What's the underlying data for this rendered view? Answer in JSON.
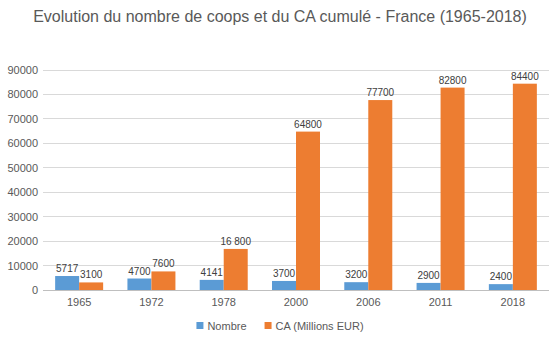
{
  "chart_data": {
    "type": "bar",
    "title": "Evolution du nombre de coops et du CA cumulé - France (1965-2018)",
    "categories": [
      "1965",
      "1972",
      "1978",
      "2000",
      "2006",
      "2011",
      "2018"
    ],
    "series": [
      {
        "name": "Nombre",
        "color": "#5b9bd5",
        "values": [
          5717,
          4700,
          4141,
          3700,
          3200,
          2900,
          2400
        ]
      },
      {
        "name": "CA (Millions EUR)",
        "color": "#ed7d31",
        "values": [
          3100,
          7600,
          16800,
          64800,
          77700,
          82800,
          84400
        ],
        "value_labels": [
          "3100",
          "7600",
          "16 800",
          "64800",
          "77700",
          "82800",
          "84400"
        ]
      }
    ],
    "ylim": [
      0,
      90000
    ],
    "yticks": [
      0,
      10000,
      20000,
      30000,
      40000,
      50000,
      60000,
      70000,
      80000,
      90000
    ],
    "grid": true,
    "legend": "bottom",
    "data_labels": true
  }
}
